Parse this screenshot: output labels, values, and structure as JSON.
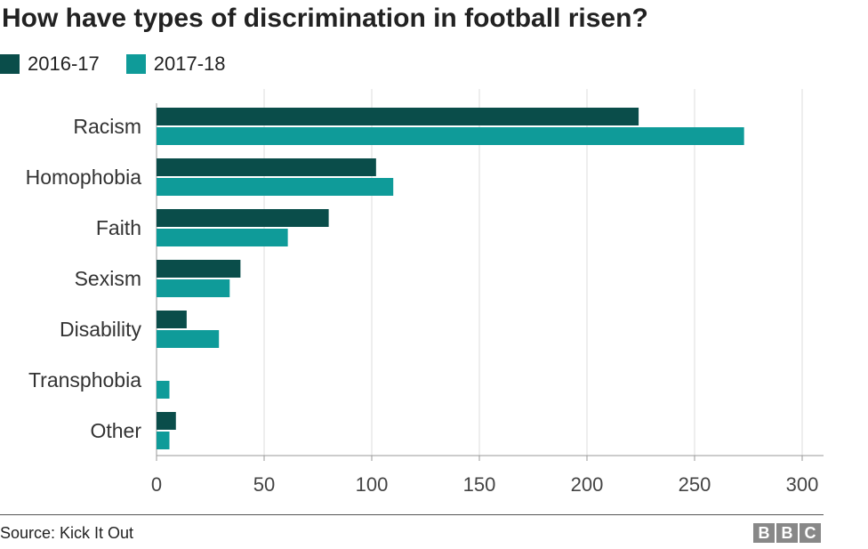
{
  "header": {
    "title": "How have types of discrimination in football risen?"
  },
  "legend": {
    "items": [
      {
        "label": "2016-17",
        "color": "#0a4d4a"
      },
      {
        "label": "2017-18",
        "color": "#0f9b99"
      }
    ]
  },
  "chart_data": {
    "type": "bar",
    "orientation": "horizontal",
    "title": "How have types of discrimination in football risen?",
    "categories": [
      "Racism",
      "Homophobia",
      "Faith",
      "Sexism",
      "Disability",
      "Transphobia",
      "Other"
    ],
    "series": [
      {
        "name": "2016-17",
        "color": "#0a4d4a",
        "values": [
          224,
          102,
          80,
          39,
          14,
          0,
          9
        ]
      },
      {
        "name": "2017-18",
        "color": "#0f9b99",
        "values": [
          273,
          110,
          61,
          34,
          29,
          6,
          6
        ]
      }
    ],
    "xlim": [
      0,
      300
    ],
    "xticks": [
      0,
      50,
      100,
      150,
      200,
      250,
      300
    ],
    "xlabel": "",
    "ylabel": "",
    "grid": true,
    "legend_position": "top-left"
  },
  "footer": {
    "source": "Source: Kick It Out",
    "logo_letters": [
      "B",
      "B",
      "C"
    ]
  }
}
